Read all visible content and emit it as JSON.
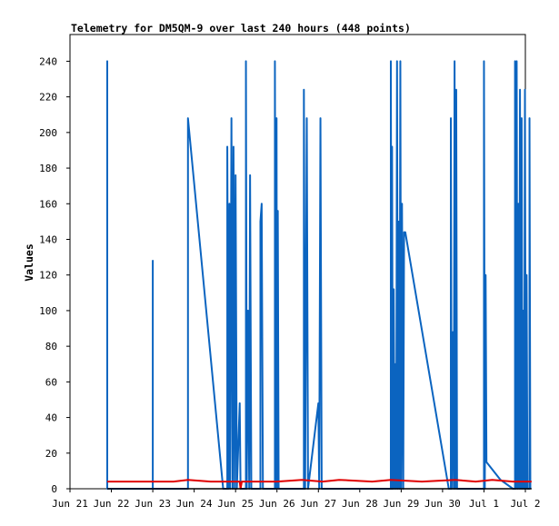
{
  "chart_data": {
    "type": "line",
    "title": "Telemetry for DM5QM-9 over last 240 hours (448 points)",
    "ylabel": "Values",
    "xlabel": "",
    "ylim": [
      0,
      255
    ],
    "x_tick_labels": [
      "Jun 21",
      "Jun 22",
      "Jun 23",
      "Jun 24",
      "Jun 25",
      "Jun 26",
      "Jun 27",
      "Jun 28",
      "Jun 29",
      "Jun 30",
      "Jul 1",
      "Jul 2"
    ],
    "y_ticks": [
      0,
      20,
      40,
      60,
      80,
      100,
      120,
      140,
      160,
      180,
      200,
      220,
      240
    ],
    "grid": false,
    "colors": {
      "series_blue": "#0b64c0",
      "series_red": "#e00000",
      "series_black": "#000000"
    },
    "series": [
      {
        "color": "blue",
        "points": [
          [
            0.9,
            0
          ],
          [
            0.9,
            240
          ],
          [
            0.9,
            0
          ],
          [
            2.0,
            0
          ],
          [
            2.0,
            128
          ],
          [
            2.0,
            0
          ],
          [
            2.85,
            0
          ],
          [
            2.85,
            208
          ],
          [
            3.7,
            0
          ],
          [
            3.8,
            0
          ],
          [
            3.8,
            192
          ],
          [
            3.83,
            0
          ],
          [
            3.85,
            160
          ],
          [
            3.87,
            0
          ],
          [
            3.9,
            208
          ],
          [
            3.93,
            0
          ],
          [
            3.95,
            192
          ],
          [
            3.98,
            0
          ],
          [
            4.0,
            176
          ],
          [
            4.03,
            0
          ],
          [
            4.1,
            48
          ],
          [
            4.12,
            0
          ],
          [
            4.25,
            0
          ],
          [
            4.25,
            240
          ],
          [
            4.27,
            0
          ],
          [
            4.3,
            100
          ],
          [
            4.33,
            0
          ],
          [
            4.35,
            176
          ],
          [
            4.38,
            0
          ],
          [
            4.6,
            0
          ],
          [
            4.6,
            150
          ],
          [
            4.63,
            160
          ],
          [
            4.66,
            0
          ],
          [
            4.95,
            0
          ],
          [
            4.95,
            240
          ],
          [
            4.97,
            0
          ],
          [
            4.99,
            208
          ],
          [
            5.0,
            0
          ],
          [
            5.02,
            156
          ],
          [
            5.04,
            0
          ],
          [
            5.65,
            0
          ],
          [
            5.65,
            224
          ],
          [
            5.68,
            0
          ],
          [
            5.72,
            208
          ],
          [
            5.75,
            0
          ],
          [
            6.0,
            48
          ],
          [
            6.02,
            0
          ],
          [
            6.05,
            208
          ],
          [
            6.08,
            0
          ],
          [
            7.75,
            0
          ],
          [
            7.75,
            240
          ],
          [
            7.77,
            0
          ],
          [
            7.78,
            192
          ],
          [
            7.8,
            0
          ],
          [
            7.82,
            112
          ],
          [
            7.84,
            0
          ],
          [
            7.86,
            70
          ],
          [
            7.88,
            0
          ],
          [
            7.9,
            240
          ],
          [
            7.92,
            0
          ],
          [
            7.94,
            150
          ],
          [
            7.96,
            0
          ],
          [
            7.98,
            240
          ],
          [
            8.0,
            0
          ],
          [
            8.02,
            160
          ],
          [
            8.05,
            0
          ],
          [
            8.07,
            144
          ],
          [
            8.1,
            144
          ],
          [
            9.15,
            0
          ],
          [
            9.2,
            0
          ],
          [
            9.2,
            208
          ],
          [
            9.22,
            0
          ],
          [
            9.25,
            88
          ],
          [
            9.27,
            0
          ],
          [
            9.29,
            240
          ],
          [
            9.31,
            0
          ],
          [
            9.33,
            224
          ],
          [
            9.35,
            0
          ],
          [
            10.0,
            0
          ],
          [
            10.0,
            240
          ],
          [
            10.02,
            0
          ],
          [
            10.04,
            120
          ],
          [
            10.06,
            15
          ],
          [
            10.4,
            5
          ],
          [
            10.7,
            0
          ],
          [
            10.75,
            0
          ],
          [
            10.75,
            240
          ],
          [
            10.77,
            0
          ],
          [
            10.79,
            240
          ],
          [
            10.81,
            0
          ],
          [
            10.83,
            160
          ],
          [
            10.85,
            0
          ],
          [
            10.87,
            224
          ],
          [
            10.89,
            0
          ],
          [
            10.91,
            208
          ],
          [
            10.93,
            0
          ],
          [
            10.95,
            100
          ],
          [
            10.97,
            0
          ],
          [
            10.99,
            224
          ],
          [
            11.01,
            0
          ],
          [
            11.03,
            120
          ],
          [
            11.05,
            0
          ],
          [
            11.1,
            0
          ],
          [
            11.1,
            208
          ],
          [
            11.12,
            0
          ]
        ]
      },
      {
        "color": "red",
        "points": [
          [
            0.9,
            4
          ],
          [
            2.0,
            4
          ],
          [
            2.5,
            4
          ],
          [
            2.85,
            5
          ],
          [
            3.4,
            4
          ],
          [
            4.1,
            4
          ],
          [
            4.12,
            0
          ],
          [
            4.15,
            4
          ],
          [
            5.0,
            4
          ],
          [
            5.6,
            5
          ],
          [
            6.1,
            4
          ],
          [
            6.5,
            5
          ],
          [
            7.3,
            4
          ],
          [
            7.75,
            5
          ],
          [
            8.5,
            4
          ],
          [
            9.3,
            5
          ],
          [
            9.8,
            4
          ],
          [
            10.2,
            5
          ],
          [
            10.7,
            4
          ],
          [
            11.15,
            4
          ]
        ]
      },
      {
        "color": "black",
        "points": [
          [
            0.9,
            0
          ],
          [
            11.15,
            0
          ]
        ]
      }
    ]
  }
}
